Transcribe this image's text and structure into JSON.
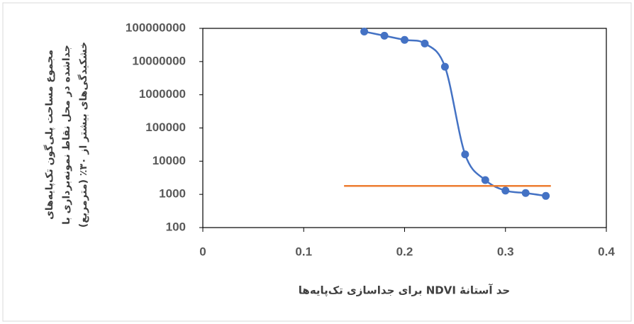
{
  "chart_data": {
    "type": "line",
    "ylabel": [
      "مجموع مساحت پلی‌گون تک‌پایه‌های",
      "جداشده در محل نقاط نمونه‌برداری با",
      "خشکیدگی‌های بیشتر از ۳۰٪ (مترمربع)"
    ],
    "xlabel": "حد آستانهٔ NDVI برای جداسازی تک‌پایه‌ها",
    "series": [
      {
        "x": [
          0.16,
          0.18,
          0.2,
          0.22,
          0.24,
          0.26,
          0.28,
          0.3,
          0.32,
          0.34
        ],
        "values": [
          80000000,
          60000000,
          45000000,
          35000000,
          7000000,
          16000,
          2700,
          1300,
          1100,
          900
        ],
        "color": "#4472c4",
        "markers": true,
        "smooth": true
      },
      {
        "x": [
          0.14,
          0.345
        ],
        "values": [
          1800,
          1800
        ],
        "color": "#ed7d31",
        "markers": false,
        "smooth": false
      }
    ],
    "xlim": [
      0,
      0.4
    ],
    "xticks": [
      0,
      0.1,
      0.2,
      0.3,
      0.4
    ],
    "ylim": [
      100,
      100000000
    ],
    "yticks": [
      100,
      1000,
      10000,
      100000,
      1000000,
      10000000,
      100000000
    ],
    "ylog": true
  }
}
